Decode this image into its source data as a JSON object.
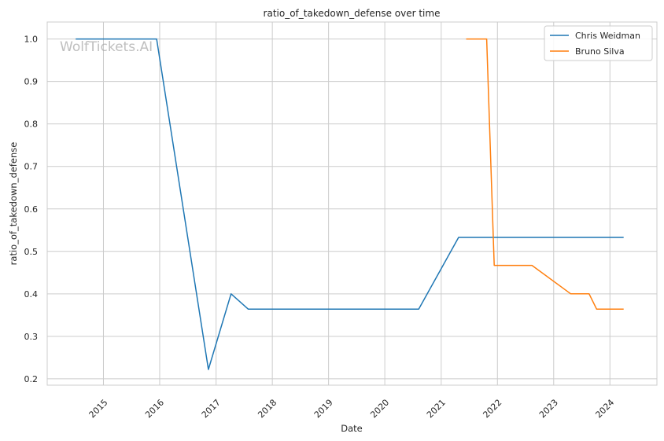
{
  "chart_data": {
    "type": "line",
    "title": "ratio_of_takedown_defense over time",
    "xlabel": "Date",
    "ylabel": "ratio_of_takedown_defense",
    "watermark": "WolfTickets.AI",
    "xlim": [
      "2014-01-01",
      "2024-11-01"
    ],
    "ylim": [
      0.185,
      1.04
    ],
    "x_ticks": [
      "2015",
      "2016",
      "2017",
      "2018",
      "2019",
      "2020",
      "2021",
      "2022",
      "2023",
      "2024"
    ],
    "y_ticks": [
      "0.2",
      "0.3",
      "0.4",
      "0.5",
      "0.6",
      "0.7",
      "0.8",
      "0.9",
      "1.0"
    ],
    "grid": true,
    "legend_position": "top-right",
    "series": [
      {
        "name": "Chris Weidman",
        "color": "#1f77b4",
        "x": [
          "2014-07-05",
          "2015-12-12",
          "2016-11-12",
          "2017-04-08",
          "2017-07-29",
          "2020-08-08",
          "2021-04-24",
          "2024-03-30"
        ],
        "y": [
          1.0,
          1.0,
          0.222,
          0.4,
          0.364,
          0.364,
          0.533,
          0.533
        ]
      },
      {
        "name": "Bruno Silva",
        "color": "#ff7f0e",
        "x": [
          "2021-06-12",
          "2021-10-23",
          "2021-12-11",
          "2022-08-13",
          "2023-04-22",
          "2023-08-19",
          "2023-10-07",
          "2024-03-30"
        ],
        "y": [
          1.0,
          1.0,
          0.467,
          0.467,
          0.4,
          0.4,
          0.364,
          0.364
        ]
      }
    ]
  }
}
